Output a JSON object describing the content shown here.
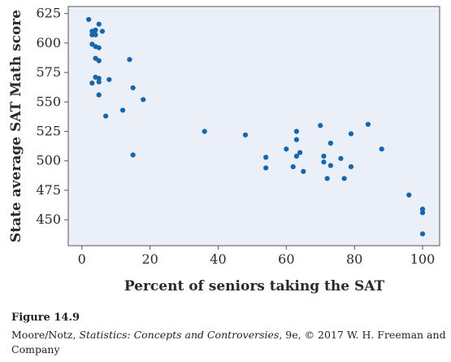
{
  "chart_data": {
    "type": "scatter",
    "xlabel": "Percent of seniors taking the SAT",
    "ylabel": "State average SAT Math score",
    "xlim": [
      -4,
      105
    ],
    "ylim": [
      428,
      631
    ],
    "xticks": [
      0,
      20,
      40,
      60,
      80,
      100
    ],
    "yticks": [
      450,
      475,
      500,
      525,
      550,
      575,
      600,
      625
    ],
    "grid": false,
    "points": [
      {
        "x": 2,
        "y": 620
      },
      {
        "x": 3,
        "y": 610
      },
      {
        "x": 3,
        "y": 607
      },
      {
        "x": 4,
        "y": 611
      },
      {
        "x": 4,
        "y": 607
      },
      {
        "x": 5,
        "y": 616
      },
      {
        "x": 6,
        "y": 610
      },
      {
        "x": 3,
        "y": 599
      },
      {
        "x": 4,
        "y": 597
      },
      {
        "x": 5,
        "y": 596
      },
      {
        "x": 4,
        "y": 587
      },
      {
        "x": 5,
        "y": 585
      },
      {
        "x": 14,
        "y": 586
      },
      {
        "x": 4,
        "y": 571
      },
      {
        "x": 5,
        "y": 570
      },
      {
        "x": 8,
        "y": 569
      },
      {
        "x": 3,
        "y": 566
      },
      {
        "x": 5,
        "y": 567
      },
      {
        "x": 15,
        "y": 562
      },
      {
        "x": 5,
        "y": 556
      },
      {
        "x": 18,
        "y": 552
      },
      {
        "x": 12,
        "y": 543
      },
      {
        "x": 7,
        "y": 538
      },
      {
        "x": 15,
        "y": 505
      },
      {
        "x": 36,
        "y": 525
      },
      {
        "x": 48,
        "y": 522
      },
      {
        "x": 54,
        "y": 503
      },
      {
        "x": 54,
        "y": 494
      },
      {
        "x": 60,
        "y": 510
      },
      {
        "x": 62,
        "y": 495
      },
      {
        "x": 63,
        "y": 525
      },
      {
        "x": 63,
        "y": 518
      },
      {
        "x": 63,
        "y": 504
      },
      {
        "x": 64,
        "y": 507
      },
      {
        "x": 65,
        "y": 491
      },
      {
        "x": 70,
        "y": 530
      },
      {
        "x": 71,
        "y": 504
      },
      {
        "x": 71,
        "y": 499
      },
      {
        "x": 72,
        "y": 485
      },
      {
        "x": 73,
        "y": 515
      },
      {
        "x": 73,
        "y": 496
      },
      {
        "x": 76,
        "y": 502
      },
      {
        "x": 77,
        "y": 485
      },
      {
        "x": 79,
        "y": 523
      },
      {
        "x": 79,
        "y": 495
      },
      {
        "x": 84,
        "y": 531
      },
      {
        "x": 88,
        "y": 510
      },
      {
        "x": 96,
        "y": 471
      },
      {
        "x": 100,
        "y": 459
      },
      {
        "x": 100,
        "y": 456
      },
      {
        "x": 100,
        "y": 438
      }
    ]
  },
  "caption": {
    "figure_label": "Figure 14.9",
    "source_prefix": "Moore/Notz, ",
    "source_book": "Statistics: Concepts and Controversies",
    "source_suffix": ", 9e, © 2017 W. H. Freeman and Company"
  }
}
